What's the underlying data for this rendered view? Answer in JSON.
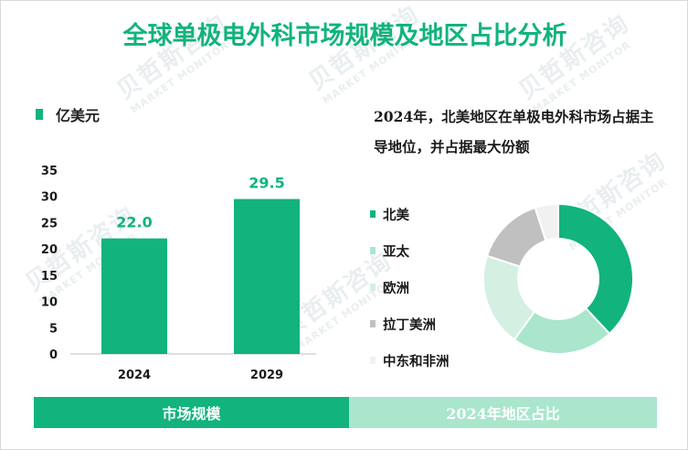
{
  "title": "全球单极电外科市场规模及地区占比分析",
  "watermark": {
    "cn": "贝哲斯咨询",
    "en": "MARKET MONITOR"
  },
  "colors": {
    "accent": "#12b37d",
    "accent_light": "#a9e6cb"
  },
  "bar_chart_unit": "亿美元",
  "subtitle": "2024年，北美地区在单极电外科市场占据主导地位，并占据最大份额",
  "footer": {
    "left": "市场规模",
    "right": "2024年地区占比"
  },
  "chart_data": [
    {
      "type": "bar",
      "categories": [
        "2024",
        "2029"
      ],
      "values": [
        22.0,
        29.5
      ],
      "value_labels": [
        "22.0",
        "29.5"
      ],
      "ylim": [
        0,
        35
      ],
      "yticks": [
        0,
        5,
        10,
        15,
        20,
        25,
        30,
        35
      ],
      "grid": false,
      "color": "#12b37d"
    },
    {
      "type": "pie",
      "donut": true,
      "labels": [
        "北美",
        "亚太",
        "欧洲",
        "拉丁美洲",
        "中东和非洲"
      ],
      "values": [
        38,
        22,
        20,
        15,
        5
      ],
      "colors": [
        "#12b37d",
        "#a9e6cb",
        "#d3f0e2",
        "#c0c0c0",
        "#f1f1f1"
      ],
      "legend_position": "left"
    }
  ]
}
